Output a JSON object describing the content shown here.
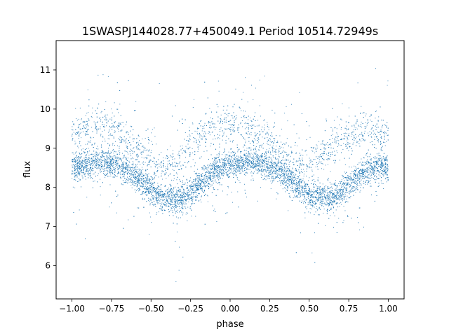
{
  "chart_data": {
    "type": "scatter",
    "title": "1SWASPJ144028.77+450049.1 Period 10514.72949s",
    "xlabel": "phase",
    "ylabel": "flux",
    "xlim": [
      -1.1,
      1.1
    ],
    "ylim": [
      5.15,
      11.75
    ],
    "xticks": [
      -1.0,
      -0.75,
      -0.5,
      -0.25,
      0.0,
      0.25,
      0.5,
      0.75,
      1.0
    ],
    "xtick_labels": [
      "−1.00",
      "−0.75",
      "−0.50",
      "−0.25",
      "0.00",
      "0.25",
      "0.50",
      "0.75",
      "1.00"
    ],
    "yticks": [
      6,
      7,
      8,
      9,
      10,
      11
    ],
    "ytick_labels": [
      "6",
      "7",
      "8",
      "9",
      "10",
      "11"
    ],
    "grid": false,
    "legend": "none",
    "marker_color": "#1f77b4",
    "series": [
      {
        "values_note": "",
        "x": [
          -1.0,
          -0.95,
          -0.9,
          -0.85,
          -0.8,
          -0.75,
          -0.7,
          -0.65,
          -0.6,
          -0.55,
          -0.5,
          -0.45,
          -0.4,
          -0.35,
          -0.3,
          -0.25,
          -0.2,
          -0.15,
          -0.1,
          -0.05,
          0.0,
          0.05,
          0.1,
          0.15,
          0.2,
          0.25,
          0.3,
          0.35,
          0.4,
          0.45,
          0.5,
          0.55,
          0.6,
          0.65,
          0.7,
          0.75,
          0.8,
          0.85,
          0.9,
          0.95,
          1.0
        ],
        "y": [
          8.5,
          8.55,
          8.6,
          8.65,
          8.65,
          8.6,
          8.55,
          8.45,
          8.3,
          8.1,
          7.95,
          7.8,
          7.72,
          7.7,
          7.72,
          7.85,
          8.05,
          8.25,
          8.4,
          8.5,
          8.55,
          8.6,
          8.65,
          8.65,
          8.6,
          8.55,
          8.45,
          8.3,
          8.1,
          7.95,
          7.8,
          7.72,
          7.7,
          7.72,
          7.85,
          8.05,
          8.25,
          8.4,
          8.5,
          8.55,
          8.5
        ],
        "upper_branch_y": [
          9.4,
          9.5,
          9.55,
          9.6,
          9.6,
          9.5,
          9.4,
          9.25,
          9.0,
          8.75,
          8.6,
          8.5,
          8.55,
          8.7,
          8.9,
          9.1,
          9.3,
          9.45,
          9.55,
          9.6,
          9.6,
          9.55,
          9.5,
          9.45,
          9.35,
          9.2,
          9.0,
          8.8,
          8.6,
          8.5,
          8.55,
          8.7,
          8.9,
          9.1,
          9.25,
          9.35,
          9.45,
          9.5,
          9.5,
          9.45,
          9.4
        ]
      }
    ]
  }
}
